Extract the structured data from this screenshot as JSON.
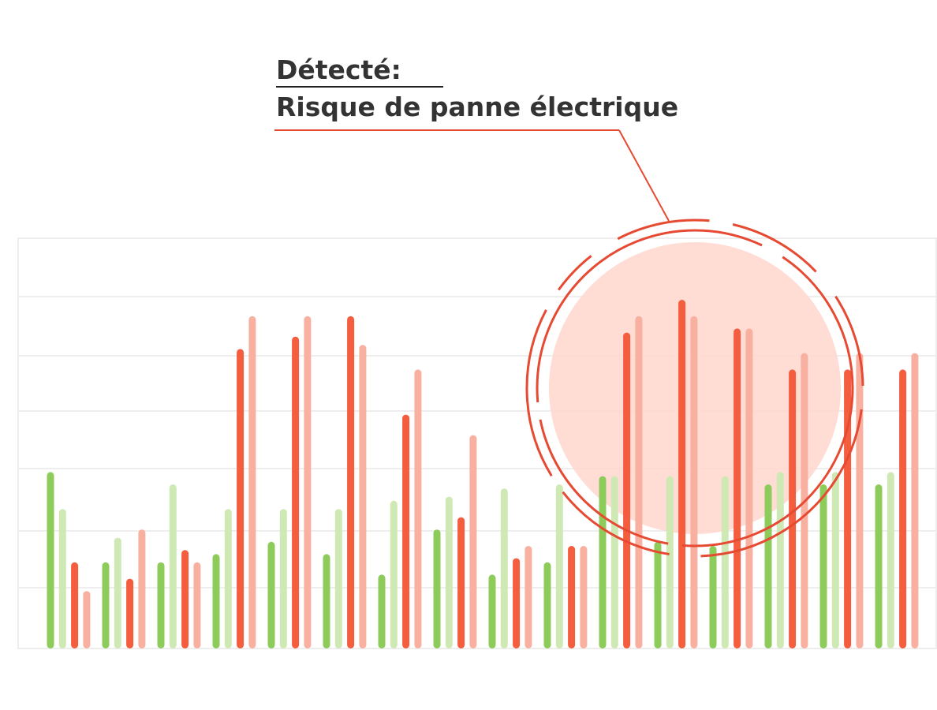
{
  "chart_data": {
    "type": "bar",
    "title": "Détecté:",
    "subtitle": "Risque de panne électrique",
    "ylim": [
      0,
      100
    ],
    "series": [
      {
        "color": "#8dcc5a",
        "values": [
          43,
          21,
          21,
          23,
          26,
          23,
          18,
          29,
          18,
          21,
          42,
          26,
          25,
          40,
          40,
          40
        ]
      },
      {
        "color": "#cfe9b4",
        "values": [
          34,
          27,
          40,
          34,
          34,
          34,
          36,
          37,
          39,
          40,
          42,
          42,
          42,
          43,
          43,
          43
        ]
      },
      {
        "color": "#f45d3d",
        "values": [
          21,
          17,
          24,
          73,
          76,
          81,
          57,
          32,
          22,
          25,
          77,
          85,
          78,
          68,
          68,
          68
        ]
      },
      {
        "color": "#f8b0a0",
        "values": [
          14,
          29,
          21,
          81,
          81,
          74,
          68,
          52,
          25,
          25,
          81,
          81,
          78,
          72,
          72,
          72
        ]
      }
    ]
  }
}
